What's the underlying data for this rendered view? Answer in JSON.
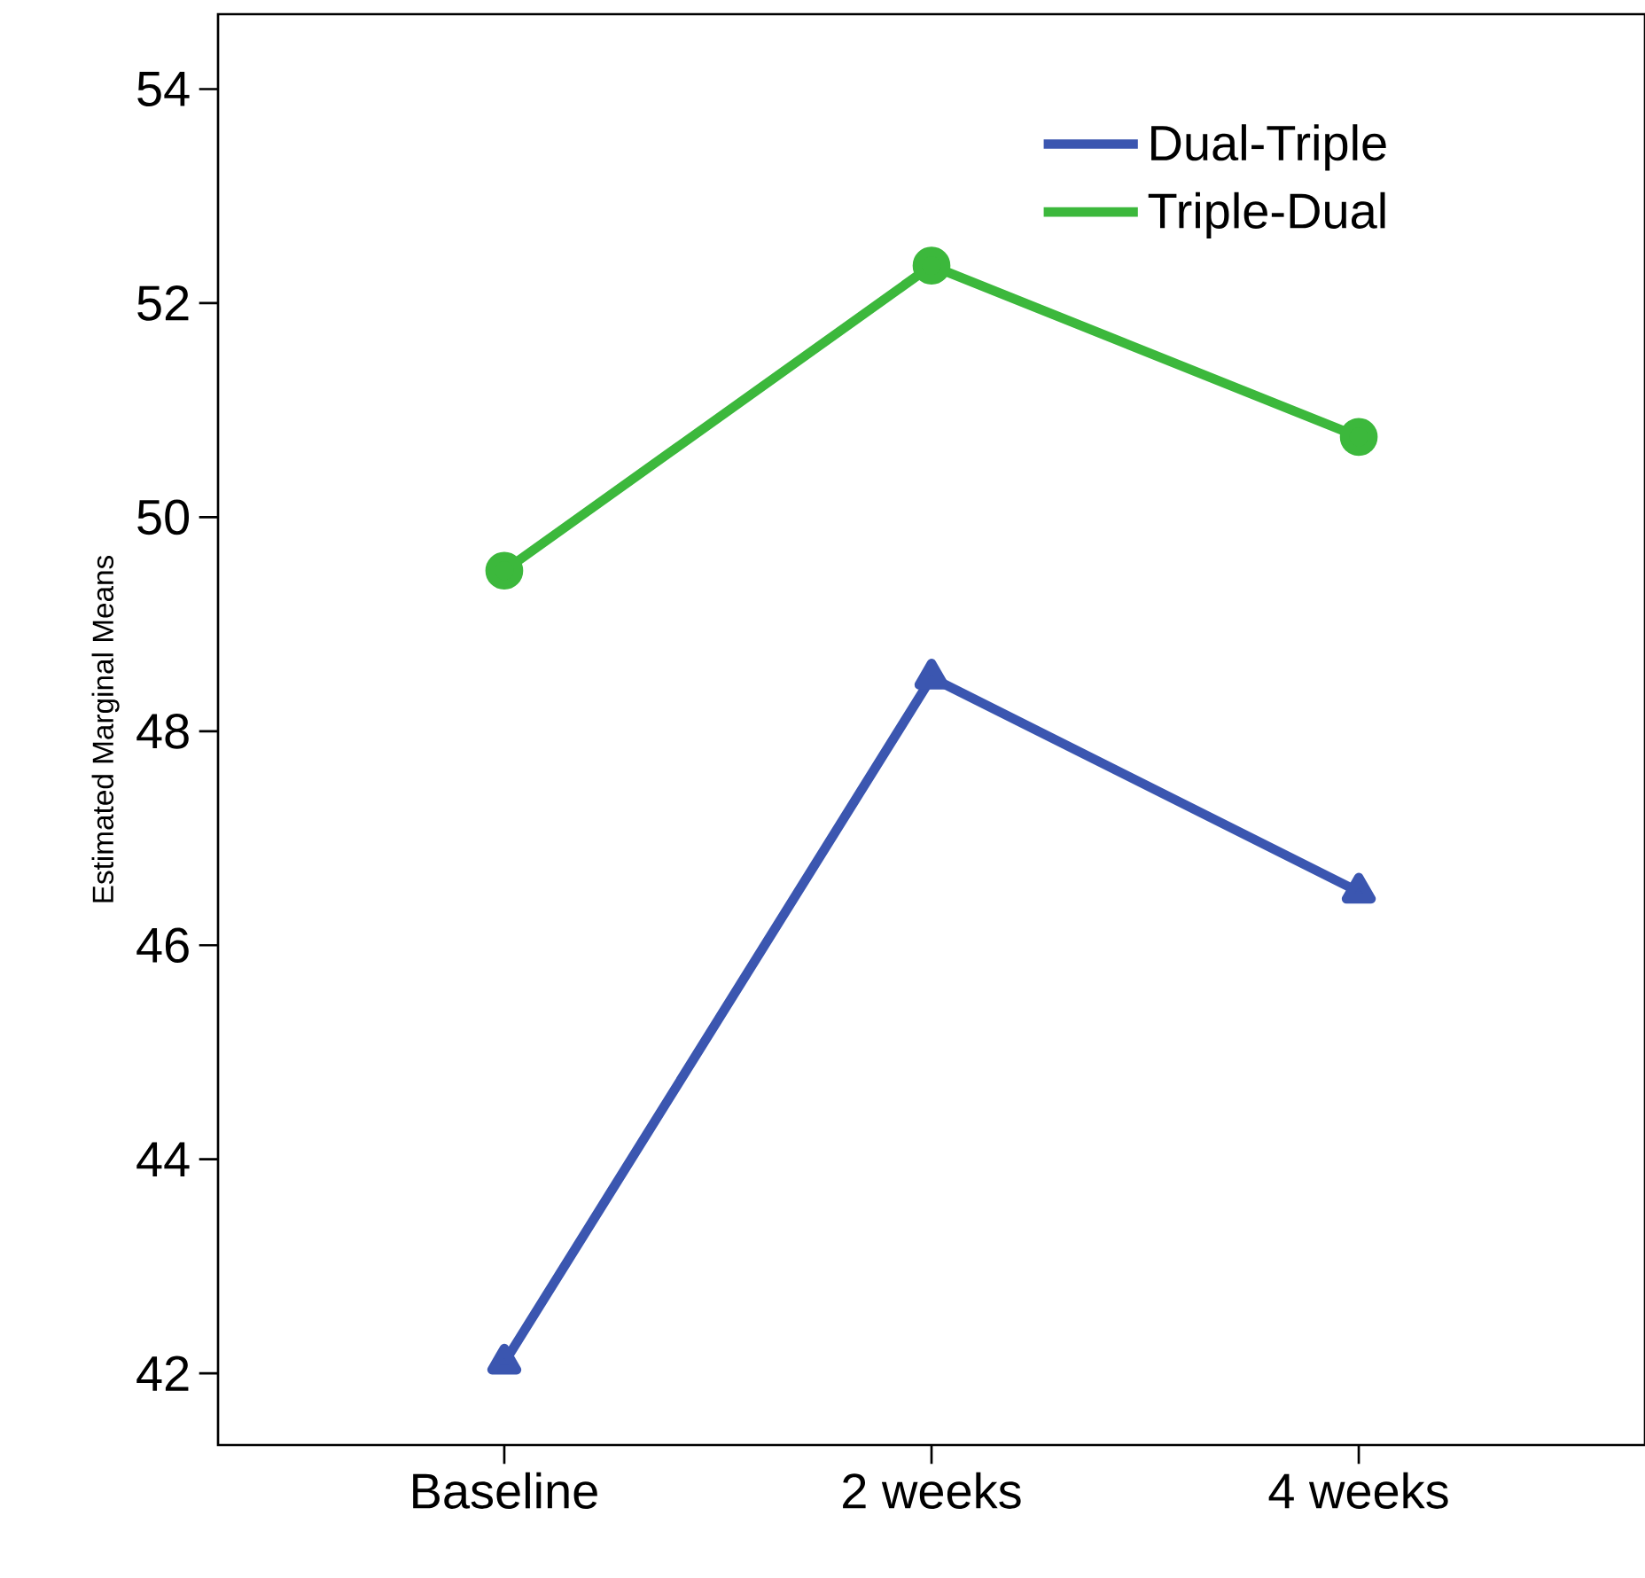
{
  "chart_data": {
    "type": "line",
    "ylabel": "Estimated Marginal Means",
    "categories": [
      "Baseline",
      "2 weeks",
      "4 weeks"
    ],
    "series": [
      {
        "name": "Dual-Triple",
        "color": "#3b56b0",
        "marker": "triangle",
        "values": [
          42.1,
          48.5,
          46.5
        ]
      },
      {
        "name": "Triple-Dual",
        "color": "#3cb83c",
        "marker": "circle",
        "values": [
          49.5,
          52.35,
          50.75
        ]
      }
    ],
    "ylim": [
      41.33,
      54.7
    ],
    "yticks": [
      42,
      44,
      46,
      48,
      50,
      52,
      54
    ],
    "grid": false,
    "legend": "top right",
    "line_style": "solid"
  }
}
